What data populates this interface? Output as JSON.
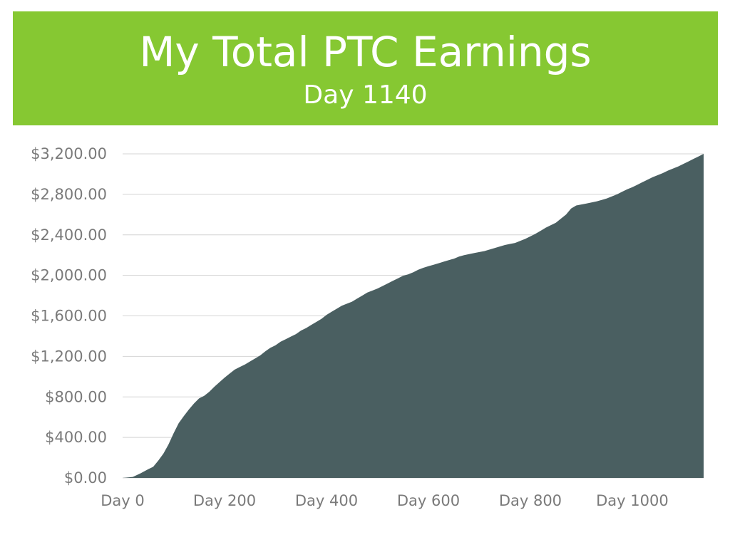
{
  "header": {
    "title": "My Total PTC Earnings",
    "subtitle": "Day 1140",
    "background_color": "#86c832"
  },
  "chart_data": {
    "type": "area",
    "title": "My Total PTC Earnings",
    "subtitle": "Day 1140",
    "xlabel": "",
    "ylabel": "",
    "xlim": [
      0,
      1140
    ],
    "ylim": [
      0,
      3200
    ],
    "y_tick_values": [
      0,
      400,
      800,
      1200,
      1600,
      2000,
      2400,
      2800,
      3200
    ],
    "y_tick_labels": [
      "$0.00",
      "$400.00",
      "$800.00",
      "$1,200.00",
      "$1,600.00",
      "$2,000.00",
      "$2,400.00",
      "$2,800.00",
      "$3,200.00"
    ],
    "x_tick_values": [
      0,
      200,
      400,
      600,
      800,
      1000
    ],
    "x_tick_labels": [
      "Day 0",
      "Day 200",
      "Day 400",
      "Day 600",
      "Day 800",
      "Day 1000"
    ],
    "grid": "horizontal",
    "fill_color": "#4a5f61",
    "series": [
      {
        "x": [
          0,
          20,
          35,
          50,
          60,
          70,
          80,
          90,
          100,
          110,
          120,
          130,
          140,
          150,
          160,
          170,
          180,
          190,
          200,
          210,
          220,
          230,
          240,
          250,
          260,
          270,
          280,
          290,
          300,
          310,
          320,
          330,
          340,
          350,
          360,
          370,
          380,
          390,
          400,
          410,
          420,
          430,
          440,
          450,
          460,
          470,
          480,
          490,
          500,
          510,
          520,
          530,
          540,
          550,
          560,
          570,
          580,
          590,
          600,
          610,
          620,
          630,
          640,
          650,
          660,
          670,
          680,
          690,
          700,
          710,
          720,
          730,
          740,
          750,
          760,
          770,
          780,
          790,
          800,
          810,
          820,
          830,
          840,
          850,
          860,
          870,
          880,
          890,
          900,
          910,
          920,
          930,
          940,
          950,
          960,
          970,
          980,
          990,
          1000,
          1010,
          1020,
          1030,
          1040,
          1050,
          1060,
          1070,
          1080,
          1090,
          1100,
          1110,
          1120,
          1130,
          1140
        ],
        "values": [
          0,
          10,
          45,
          85,
          110,
          170,
          240,
          330,
          440,
          540,
          610,
          675,
          735,
          785,
          810,
          850,
          900,
          945,
          990,
          1030,
          1070,
          1095,
          1120,
          1150,
          1180,
          1210,
          1250,
          1285,
          1310,
          1345,
          1370,
          1395,
          1420,
          1455,
          1480,
          1510,
          1540,
          1570,
          1610,
          1640,
          1670,
          1700,
          1720,
          1740,
          1770,
          1800,
          1830,
          1850,
          1870,
          1895,
          1920,
          1945,
          1970,
          1995,
          2010,
          2030,
          2055,
          2075,
          2090,
          2105,
          2120,
          2135,
          2150,
          2165,
          2185,
          2200,
          2210,
          2220,
          2230,
          2240,
          2255,
          2270,
          2285,
          2300,
          2310,
          2320,
          2340,
          2360,
          2385,
          2410,
          2440,
          2470,
          2495,
          2520,
          2560,
          2600,
          2660,
          2690,
          2700,
          2710,
          2720,
          2730,
          2745,
          2760,
          2780,
          2800,
          2825,
          2850,
          2870,
          2895,
          2920,
          2945,
          2970,
          2990,
          3010,
          3035,
          3055,
          3075,
          3100,
          3125,
          3150,
          3175,
          3200
        ]
      }
    ]
  }
}
